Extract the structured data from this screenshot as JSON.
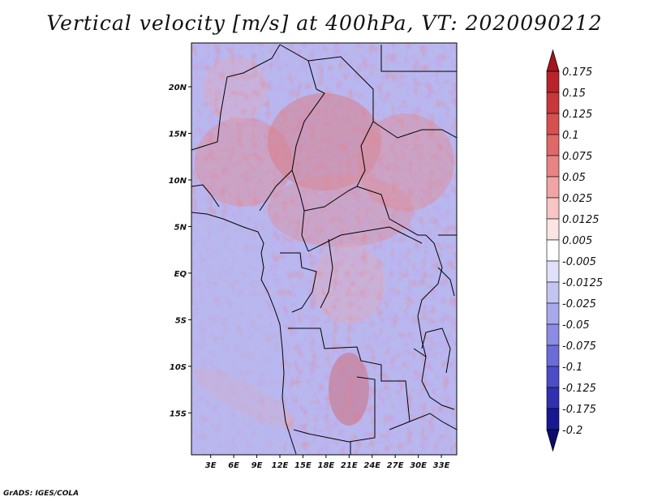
{
  "title": "Vertical velocity [m/s] at 400hPa, VT: 2020090212",
  "credit": "GrADS: IGES/COLA",
  "map": {
    "region": "Central Africa",
    "lat_labels": [
      "20N",
      "15N",
      "10N",
      "5N",
      "EQ",
      "5S",
      "10S",
      "15S"
    ],
    "lat_values": [
      20,
      15,
      10,
      5,
      0,
      -5,
      -10,
      -15
    ],
    "lon_labels": [
      "3E",
      "6E",
      "9E",
      "12E",
      "15E",
      "18E",
      "21E",
      "24E",
      "27E",
      "30E",
      "33E"
    ],
    "lon_values": [
      3,
      6,
      9,
      12,
      15,
      18,
      21,
      24,
      27,
      30,
      33
    ],
    "lon_range": [
      0.5,
      35
    ],
    "lat_range": [
      -19.5,
      24.7
    ]
  },
  "colorbar": {
    "labels": [
      "0.175",
      "0.15",
      "0.125",
      "0.1",
      "0.075",
      "0.05",
      "0.025",
      "0.0125",
      "0.005",
      "-0.005",
      "-0.0125",
      "-0.025",
      "-0.05",
      "-0.075",
      "-0.1",
      "-0.125",
      "-0.175",
      "-0.2"
    ],
    "colors": [
      "#a8141c",
      "#b8242a",
      "#c8383a",
      "#d65050",
      "#e06868",
      "#e88484",
      "#f0a4a4",
      "#f8c4c4",
      "#fde4e4",
      "#ffffff",
      "#e0e0fa",
      "#c4c4f2",
      "#a8a8ec",
      "#8c8ce4",
      "#6c6cd8",
      "#4c4cc8",
      "#3030b0",
      "#181890",
      "#0c0c70"
    ],
    "units": "m/s"
  },
  "palette": {
    "blue_base": "#a8a8ec",
    "blue_deep": "#6c6cd8",
    "red_mid": "#e06868",
    "red_deep": "#c8383a",
    "coast": "#000000"
  }
}
